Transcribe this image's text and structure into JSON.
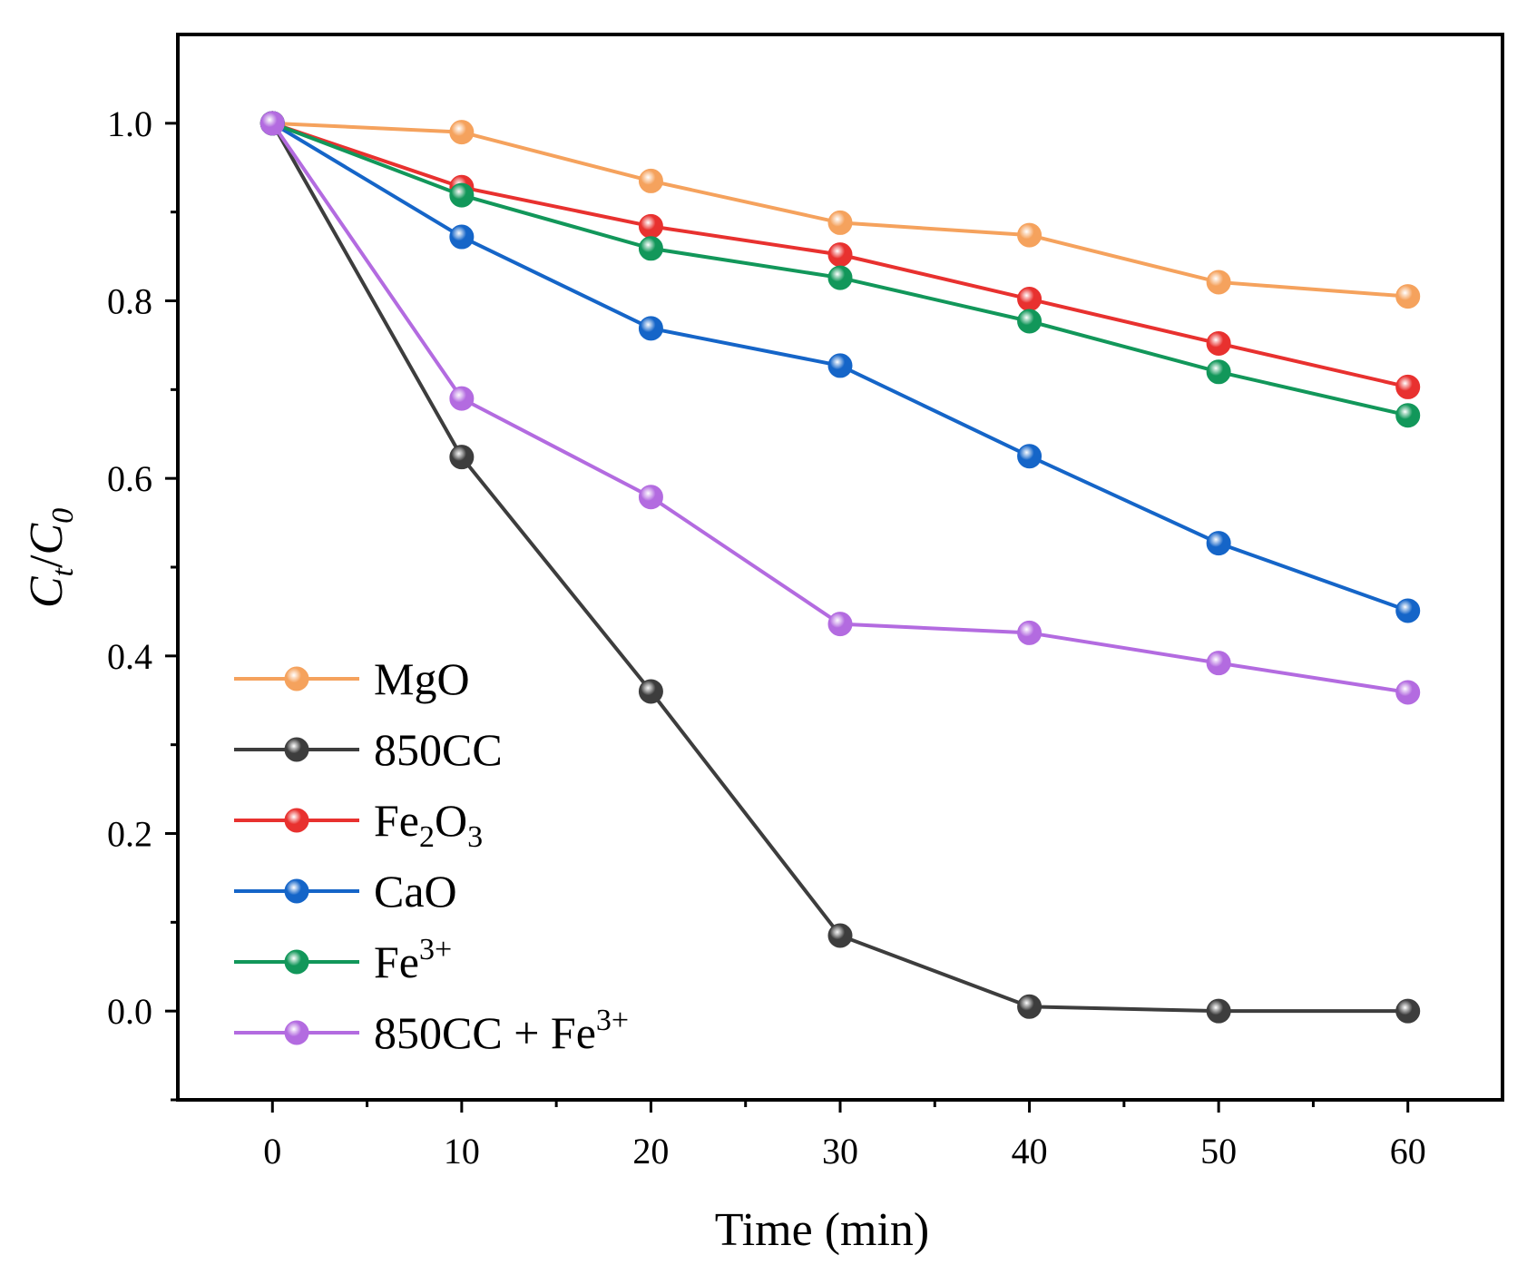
{
  "chart_data": {
    "type": "line",
    "title": "",
    "xlabel": "Time (min)",
    "ylabel": {
      "main1": "C",
      "sub1": "t",
      "sep": "/",
      "main2": "C",
      "sub2": "0"
    },
    "xlim": [
      -5,
      65
    ],
    "ylim": [
      -0.1,
      1.1
    ],
    "xticks": [
      0,
      10,
      20,
      30,
      40,
      50,
      60
    ],
    "yticks": [
      0.0,
      0.2,
      0.4,
      0.6,
      0.8,
      1.0
    ],
    "xtick_labels": [
      "0",
      "10",
      "20",
      "30",
      "40",
      "50",
      "60"
    ],
    "ytick_labels": [
      "0.0",
      "0.2",
      "0.4",
      "0.6",
      "0.8",
      "1.0"
    ],
    "x": [
      0,
      10,
      20,
      30,
      40,
      50,
      60
    ],
    "legend_position": "bottom-left",
    "grid": false,
    "series": [
      {
        "name": "MgO",
        "label_parts": [
          {
            "t": "MgO"
          }
        ],
        "color": "#f5a25d",
        "values": [
          1.0,
          0.99,
          0.935,
          0.888,
          0.874,
          0.821,
          0.805
        ]
      },
      {
        "name": "850CC",
        "label_parts": [
          {
            "t": "850CC"
          }
        ],
        "color": "#3d3d3d",
        "values": [
          1.0,
          0.624,
          0.36,
          0.085,
          0.005,
          0.0,
          0.0
        ]
      },
      {
        "name": "Fe2O3",
        "label_parts": [
          {
            "t": "Fe"
          },
          {
            "t": "2",
            "sub": true
          },
          {
            "t": "O"
          },
          {
            "t": "3",
            "sub": true
          }
        ],
        "color": "#e8312f",
        "values": [
          1.0,
          0.928,
          0.884,
          0.852,
          0.802,
          0.752,
          0.703
        ]
      },
      {
        "name": "CaO",
        "label_parts": [
          {
            "t": "CaO"
          }
        ],
        "color": "#1565c8",
        "values": [
          1.0,
          0.872,
          0.769,
          0.727,
          0.625,
          0.527,
          0.451
        ]
      },
      {
        "name": "Fe3+",
        "label_parts": [
          {
            "t": "Fe"
          },
          {
            "t": "3+",
            "sup": true
          }
        ],
        "color": "#12975a",
        "values": [
          1.0,
          0.919,
          0.859,
          0.826,
          0.777,
          0.72,
          0.671
        ]
      },
      {
        "name": "850CC + Fe3+",
        "label_parts": [
          {
            "t": "850CC + Fe"
          },
          {
            "t": "3+",
            "sup": true
          }
        ],
        "color": "#b36be0",
        "values": [
          1.0,
          0.69,
          0.579,
          0.436,
          0.426,
          0.392,
          0.359
        ]
      }
    ]
  }
}
